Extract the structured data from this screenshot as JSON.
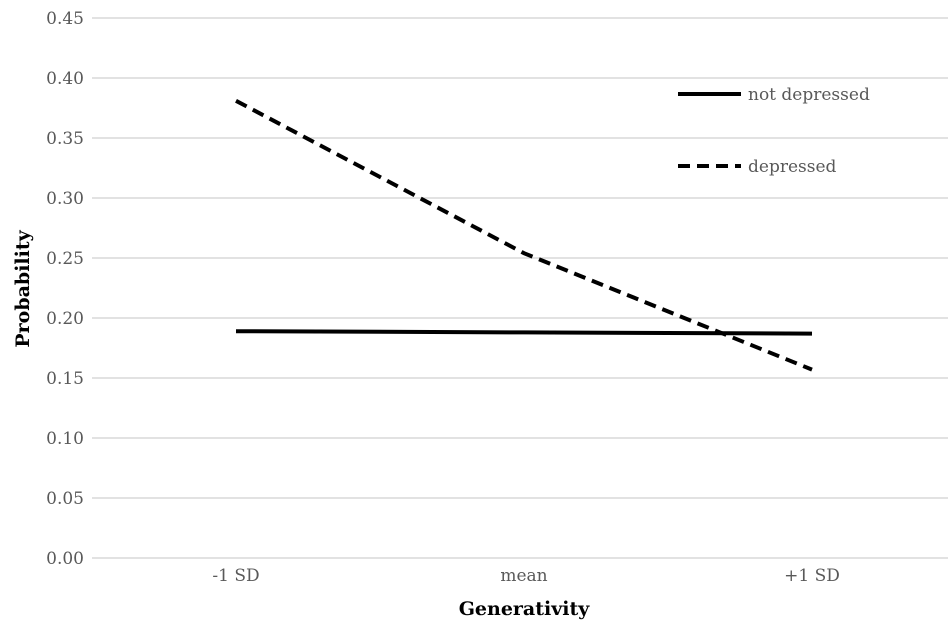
{
  "chart_data": {
    "type": "line",
    "title": "",
    "xlabel": "Generativity",
    "ylabel": "Probability",
    "categories": [
      "-1 SD",
      "mean",
      "+1 SD"
    ],
    "ylim": [
      0,
      0.45
    ],
    "yticks": [
      "0.00",
      "0.05",
      "0.10",
      "0.15",
      "0.20",
      "0.25",
      "0.30",
      "0.35",
      "0.40",
      "0.45"
    ],
    "grid": true,
    "legend_position": "top-right",
    "series": [
      {
        "name": "not depressed",
        "values": [
          0.189,
          0.188,
          0.187
        ],
        "style": "solid",
        "color": "#000000"
      },
      {
        "name": "depressed",
        "values": [
          0.381,
          0.254,
          0.157
        ],
        "style": "dashed",
        "color": "#000000"
      }
    ]
  }
}
